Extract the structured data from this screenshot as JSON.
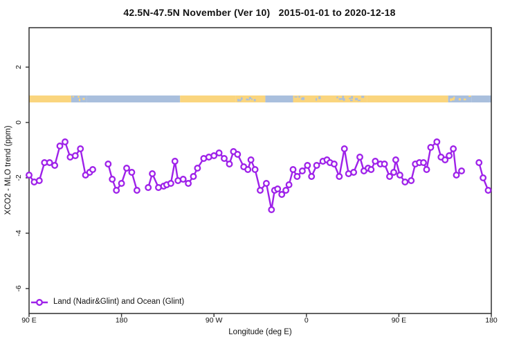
{
  "title": "42.5N-47.5N November (Ver 10)   2015-01-01 to 2020-12-18",
  "colors": {
    "series": "#9E21E9",
    "marker_fill": "#ffffff",
    "land": "#FAD57E",
    "ocean": "#A9BFDD",
    "axis": "#2e2e2e",
    "text": "#111111",
    "background": "#ffffff"
  },
  "legend": {
    "position": "bottom-left",
    "label": "Land (Nadir&Glint) and Ocean (Glint)"
  },
  "chart_data": {
    "type": "line",
    "title": "42.5N-47.5N November (Ver 10)   2015-01-01 to 2020-12-18",
    "xlabel": "Longitude (deg E)",
    "ylabel": "XCO2 - MLO trend (ppm)",
    "xlim": [
      90,
      540
    ],
    "ylim": [
      -6.9,
      3.4
    ],
    "grid": false,
    "marker": "open-circle",
    "x_ticks": [
      {
        "lon": 90,
        "label": "90 E"
      },
      {
        "lon": 180,
        "label": "180"
      },
      {
        "lon": 270,
        "label": "90 W"
      },
      {
        "lon": 360,
        "label": "0"
      },
      {
        "lon": 450,
        "label": "90 E"
      },
      {
        "lon": 540,
        "label": "180"
      }
    ],
    "y_ticks": [
      {
        "value": 2,
        "label": "2"
      },
      {
        "value": 0,
        "label": "0"
      },
      {
        "value": -2,
        "label": "-2"
      },
      {
        "value": -4,
        "label": "-4"
      },
      {
        "value": -6,
        "label": "-6"
      }
    ],
    "map_strip": {
      "description": "land/ocean mask band at latitude 42.5N-47.5N",
      "y_range": [
        0.725,
        0.975
      ],
      "segments": [
        {
          "from": 90,
          "to": 131,
          "type": "land"
        },
        {
          "from": 131,
          "to": 146,
          "type": "mixed-ocean"
        },
        {
          "from": 146,
          "to": 237,
          "type": "ocean"
        },
        {
          "from": 237,
          "to": 291,
          "type": "land"
        },
        {
          "from": 291,
          "to": 320,
          "type": "mixed-land"
        },
        {
          "from": 320,
          "to": 347,
          "type": "ocean"
        },
        {
          "from": 347,
          "to": 419,
          "type": "mixed-land"
        },
        {
          "from": 419,
          "to": 498,
          "type": "land"
        },
        {
          "from": 498,
          "to": 521,
          "type": "mixed-ocean"
        },
        {
          "from": 521,
          "to": 540,
          "type": "ocean"
        }
      ]
    },
    "series": [
      {
        "name": "Land (Nadir&Glint) and Ocean (Glint)",
        "segments": [
          [
            [
              90,
              -1.9
            ],
            [
              95,
              -2.15
            ],
            [
              100,
              -2.1
            ],
            [
              105,
              -1.45
            ],
            [
              110,
              -1.45
            ],
            [
              115,
              -1.55
            ],
            [
              120,
              -0.85
            ],
            [
              125,
              -0.7
            ],
            [
              130,
              -1.25
            ],
            [
              135,
              -1.2
            ],
            [
              140,
              -0.95
            ],
            [
              145,
              -1.9
            ],
            [
              149,
              -1.8
            ],
            [
              152,
              -1.7
            ]
          ],
          [
            [
              167,
              -1.5
            ],
            [
              171,
              -2.05
            ],
            [
              175,
              -2.45
            ],
            [
              180,
              -2.2
            ],
            [
              185,
              -1.65
            ],
            [
              190,
              -1.8
            ],
            [
              195,
              -2.45
            ]
          ],
          [
            [
              206,
              -2.35
            ],
            [
              210,
              -1.85
            ],
            [
              216,
              -2.35
            ],
            [
              221,
              -2.3
            ],
            [
              224,
              -2.25
            ],
            [
              228,
              -2.2
            ],
            [
              232,
              -1.4
            ],
            [
              235,
              -2.1
            ],
            [
              240,
              -2.05
            ],
            [
              245,
              -2.2
            ],
            [
              250,
              -1.95
            ],
            [
              254,
              -1.65
            ],
            [
              260,
              -1.3
            ],
            [
              265,
              -1.25
            ],
            [
              270,
              -1.2
            ],
            [
              275,
              -1.1
            ],
            [
              280,
              -1.3
            ],
            [
              285,
              -1.5
            ],
            [
              289,
              -1.05
            ],
            [
              293,
              -1.15
            ],
            [
              299,
              -1.6
            ],
            [
              303,
              -1.7
            ],
            [
              306,
              -1.35
            ],
            [
              310,
              -1.7
            ],
            [
              315,
              -2.45
            ],
            [
              321,
              -2.2
            ],
            [
              326,
              -3.15
            ],
            [
              329,
              -2.45
            ],
            [
              332,
              -2.4
            ],
            [
              336,
              -2.6
            ],
            [
              340,
              -2.45
            ],
            [
              343,
              -2.25
            ],
            [
              347,
              -1.7
            ],
            [
              351,
              -1.95
            ],
            [
              356,
              -1.75
            ],
            [
              361,
              -1.55
            ],
            [
              365,
              -1.95
            ],
            [
              370,
              -1.55
            ],
            [
              376,
              -1.4
            ],
            [
              380,
              -1.35
            ],
            [
              383,
              -1.45
            ],
            [
              387,
              -1.5
            ],
            [
              392,
              -1.95
            ],
            [
              397,
              -0.95
            ],
            [
              401,
              -1.85
            ],
            [
              406,
              -1.8
            ],
            [
              412,
              -1.25
            ],
            [
              416,
              -1.75
            ],
            [
              420,
              -1.65
            ],
            [
              423,
              -1.7
            ],
            [
              427,
              -1.4
            ],
            [
              432,
              -1.5
            ],
            [
              436,
              -1.5
            ],
            [
              441,
              -1.95
            ],
            [
              445,
              -1.8
            ],
            [
              447,
              -1.35
            ],
            [
              451,
              -1.9
            ],
            [
              456,
              -2.15
            ],
            [
              462,
              -2.1
            ],
            [
              466,
              -1.5
            ],
            [
              470,
              -1.45
            ],
            [
              474,
              -1.45
            ],
            [
              477,
              -1.7
            ],
            [
              481,
              -0.9
            ],
            [
              487,
              -0.7
            ],
            [
              491,
              -1.25
            ],
            [
              495,
              -1.35
            ],
            [
              499,
              -1.2
            ],
            [
              503,
              -0.95
            ],
            [
              506,
              -1.9
            ],
            [
              511,
              -1.75
            ]
          ],
          [
            [
              528,
              -1.45
            ],
            [
              532,
              -2.0
            ],
            [
              537,
              -2.45
            ]
          ]
        ]
      }
    ]
  }
}
